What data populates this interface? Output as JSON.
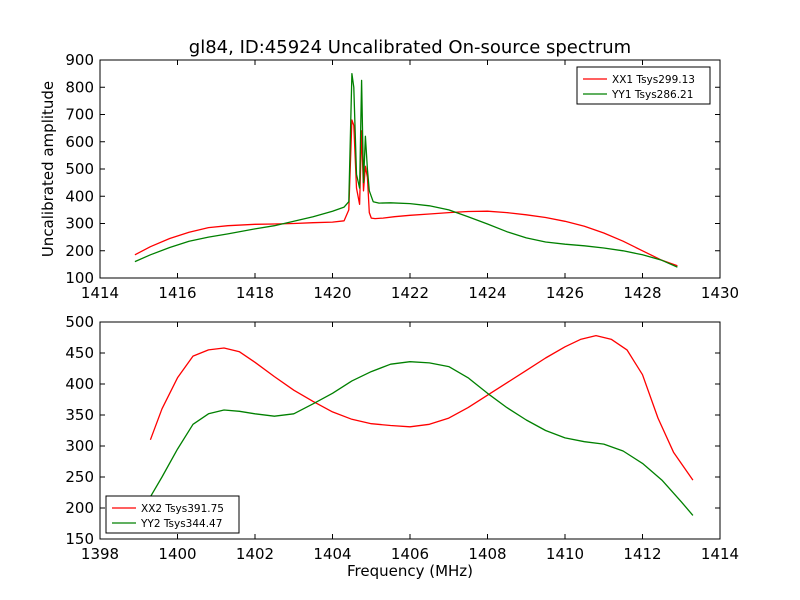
{
  "figure": {
    "title": "gl84, ID:45924 Uncalibrated On-source spectrum"
  },
  "chart_data": [
    {
      "type": "line",
      "title": "gl84, ID:45924 Uncalibrated On-source spectrum",
      "xlabel": "",
      "ylabel": "Uncalibrated amplitude",
      "xlim": [
        1414,
        1430
      ],
      "ylim": [
        100,
        900
      ],
      "xticks": [
        "1414",
        "1416",
        "1418",
        "1420",
        "1422",
        "1424",
        "1426",
        "1428",
        "1430"
      ],
      "yticks": [
        "100",
        "200",
        "300",
        "400",
        "500",
        "600",
        "700",
        "800",
        "900"
      ],
      "grid": false,
      "legend": "top-right",
      "series": [
        {
          "name": "XX1 Tsys299.13",
          "color": "#ff0000",
          "x": [
            1414.9,
            1415.3,
            1415.8,
            1416.3,
            1416.8,
            1417.3,
            1418.0,
            1418.5,
            1419.0,
            1419.5,
            1420.0,
            1420.3,
            1420.42,
            1420.5,
            1420.55,
            1420.62,
            1420.7,
            1420.75,
            1420.8,
            1420.85,
            1420.9,
            1420.95,
            1421.0,
            1421.1,
            1421.3,
            1421.6,
            1422.0,
            1422.5,
            1423.0,
            1423.5,
            1424.0,
            1424.5,
            1425.0,
            1425.5,
            1426.0,
            1426.5,
            1427.0,
            1427.5,
            1428.0,
            1428.5,
            1428.9
          ],
          "y": [
            185,
            215,
            245,
            268,
            285,
            292,
            297,
            298,
            300,
            303,
            305,
            310,
            350,
            680,
            660,
            430,
            370,
            640,
            420,
            510,
            470,
            340,
            320,
            318,
            320,
            325,
            330,
            335,
            340,
            344,
            345,
            340,
            332,
            322,
            308,
            290,
            265,
            235,
            200,
            165,
            145
          ]
        },
        {
          "name": "YY1 Tsys286.21",
          "color": "#008000",
          "x": [
            1414.9,
            1415.3,
            1415.8,
            1416.3,
            1416.8,
            1417.3,
            1418.0,
            1418.5,
            1419.0,
            1419.5,
            1420.0,
            1420.3,
            1420.42,
            1420.5,
            1420.55,
            1420.62,
            1420.7,
            1420.75,
            1420.8,
            1420.85,
            1420.9,
            1420.95,
            1421.05,
            1421.2,
            1421.5,
            1422.0,
            1422.5,
            1423.0,
            1423.5,
            1424.0,
            1424.5,
            1425.0,
            1425.5,
            1426.0,
            1426.5,
            1427.0,
            1427.5,
            1428.0,
            1428.5,
            1428.9
          ],
          "y": [
            160,
            185,
            212,
            235,
            250,
            262,
            280,
            292,
            308,
            325,
            345,
            360,
            380,
            850,
            800,
            480,
            430,
            825,
            450,
            620,
            500,
            420,
            380,
            375,
            376,
            373,
            365,
            350,
            325,
            298,
            270,
            247,
            232,
            224,
            218,
            210,
            200,
            185,
            165,
            140
          ]
        }
      ]
    },
    {
      "type": "line",
      "title": "",
      "xlabel": "Frequency (MHz)",
      "ylabel": "",
      "xlim": [
        1398,
        1414
      ],
      "ylim": [
        150,
        500
      ],
      "xticks": [
        "1398",
        "1400",
        "1402",
        "1404",
        "1406",
        "1408",
        "1410",
        "1412",
        "1414"
      ],
      "yticks": [
        "150",
        "200",
        "250",
        "300",
        "350",
        "400",
        "450",
        "500"
      ],
      "grid": false,
      "legend": "bottom-left",
      "series": [
        {
          "name": "XX2 Tsys391.75",
          "color": "#ff0000",
          "x": [
            1399.3,
            1399.6,
            1400.0,
            1400.4,
            1400.8,
            1401.2,
            1401.6,
            1402.0,
            1402.5,
            1403.0,
            1403.5,
            1404.0,
            1404.5,
            1405.0,
            1405.5,
            1406.0,
            1406.5,
            1407.0,
            1407.5,
            1408.0,
            1408.5,
            1409.0,
            1409.5,
            1410.0,
            1410.4,
            1410.8,
            1411.2,
            1411.6,
            1412.0,
            1412.4,
            1412.8,
            1413.3
          ],
          "y": [
            310,
            360,
            410,
            445,
            455,
            458,
            452,
            435,
            412,
            390,
            372,
            355,
            343,
            336,
            333,
            331,
            335,
            345,
            362,
            382,
            402,
            422,
            442,
            460,
            472,
            478,
            472,
            455,
            415,
            345,
            290,
            245
          ]
        },
        {
          "name": "YY2 Tsys344.47",
          "color": "#008000",
          "x": [
            1399.3,
            1399.6,
            1400.0,
            1400.4,
            1400.8,
            1401.2,
            1401.6,
            1402.0,
            1402.5,
            1403.0,
            1403.5,
            1404.0,
            1404.5,
            1405.0,
            1405.5,
            1406.0,
            1406.5,
            1407.0,
            1407.5,
            1408.0,
            1408.5,
            1409.0,
            1409.5,
            1410.0,
            1410.5,
            1411.0,
            1411.5,
            1412.0,
            1412.5,
            1413.0,
            1413.3
          ],
          "y": [
            218,
            250,
            295,
            335,
            352,
            358,
            356,
            352,
            348,
            352,
            368,
            385,
            405,
            420,
            432,
            436,
            434,
            428,
            410,
            385,
            362,
            342,
            325,
            313,
            307,
            303,
            292,
            272,
            245,
            210,
            188
          ]
        }
      ]
    }
  ]
}
